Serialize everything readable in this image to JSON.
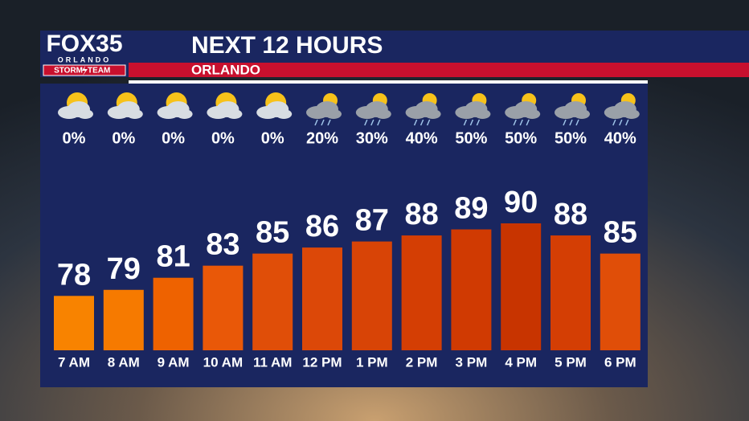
{
  "logo": {
    "brand": "FOX35",
    "city": "ORLANDO",
    "team_left": "STORM",
    "team_right": "TEAM"
  },
  "chart_data": {
    "type": "bar",
    "title": "NEXT 12 HOURS",
    "subtitle": "ORLANDO",
    "categories": [
      "7 AM",
      "8 AM",
      "9 AM",
      "10 AM",
      "11 AM",
      "12 PM",
      "1 PM",
      "2 PM",
      "3 PM",
      "4 PM",
      "5 PM",
      "6 PM"
    ],
    "values": [
      78,
      79,
      81,
      83,
      85,
      86,
      87,
      88,
      89,
      90,
      88,
      85
    ],
    "colors": [
      "#f88300",
      "#f67a00",
      "#ee6200",
      "#e95808",
      "#e04e08",
      "#dc4808",
      "#d84406",
      "#d43e04",
      "#d03a02",
      "#c83400",
      "#d43e04",
      "#e04e08"
    ],
    "ylim": [
      69,
      90
    ],
    "precip": {
      "values": [
        0,
        0,
        0,
        0,
        0,
        20,
        30,
        40,
        50,
        50,
        50,
        40
      ],
      "value_labels": [
        "0%",
        "0%",
        "0%",
        "0%",
        "0%",
        "20%",
        "30%",
        "40%",
        "50%",
        "50%",
        "50%",
        "40%"
      ]
    }
  }
}
